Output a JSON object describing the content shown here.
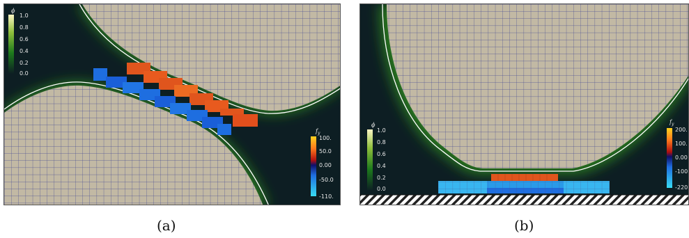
{
  "colors": {
    "background": "#0d1e23",
    "solid_phase": "#c2b9a4",
    "grid_line": "#4a4e92",
    "interface_line": "#ffffff",
    "phi_low": "#0d1e23",
    "phi_mid": "#1d7a1c",
    "phi_high": "#fcf6c4",
    "force_positive": "#e0551d",
    "force_peak": "#ffd21f",
    "force_negative": "#1e6ee0",
    "force_min": "#38dcf4"
  },
  "panel_a": {
    "caption": "(a)",
    "phi_colorbar": {
      "title": "ϕ",
      "ticks": [
        "1.0",
        "0.8",
        "0.6",
        "0.4",
        "0.2",
        "0.0"
      ]
    },
    "force_colorbar": {
      "title": "f",
      "subscript": "y",
      "ticks": [
        "100.",
        "50.0",
        "0.00",
        "-50.0",
        "-110."
      ]
    }
  },
  "panel_b": {
    "caption": "(b)",
    "phi_colorbar": {
      "title": "ϕ",
      "ticks": [
        "1.0",
        "0.8",
        "0.6",
        "0.4",
        "0.2",
        "0.0"
      ]
    },
    "force_colorbar": {
      "title": "f",
      "subscript": "y",
      "ticks": [
        "200.",
        "100.",
        "0.00",
        "-100",
        "-220"
      ]
    }
  }
}
